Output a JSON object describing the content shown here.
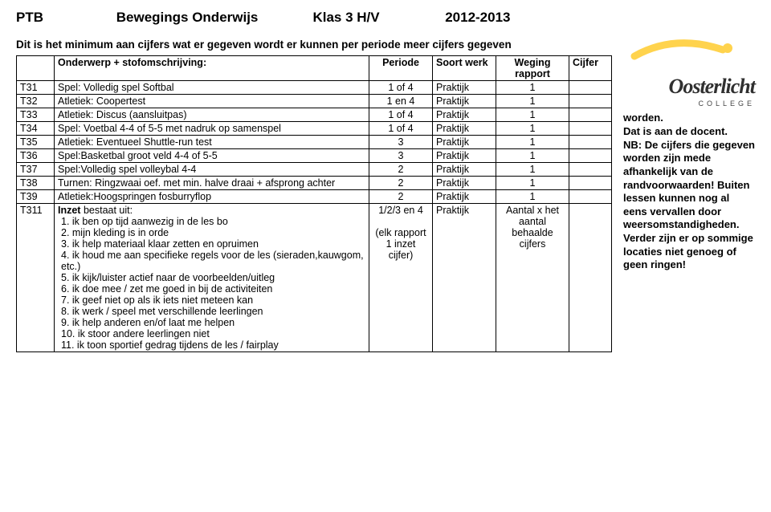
{
  "header": {
    "ptb": "PTB",
    "title": "Bewegings Onderwijs",
    "klas": "Klas 3  H/V",
    "year": "2012-2013"
  },
  "intro": "Dit is het minimum aan cijfers wat er gegeven wordt er kunnen per periode meer cijfers gegeven",
  "table": {
    "headers": {
      "code": "",
      "onderwerp": "Onderwerp + stofomschrijving:",
      "periode": "Periode",
      "soort": "Soort werk",
      "weging": "Weging rapport",
      "cijfer": "Cijfer"
    },
    "rows": [
      {
        "code": "T31",
        "onderwerp": "Spel: Volledig spel Softbal",
        "periode": "1 of 4",
        "soort": "Praktijk",
        "weging": "1",
        "cijfer": ""
      },
      {
        "code": "T32",
        "onderwerp": "Atletiek: Coopertest",
        "periode": "1 en 4",
        "soort": "Praktijk",
        "weging": "1",
        "cijfer": ""
      },
      {
        "code": "T33",
        "onderwerp": "Atletiek: Discus (aansluitpas)",
        "periode": "1 of 4",
        "soort": "Praktijk",
        "weging": "1",
        "cijfer": ""
      },
      {
        "code": "T34",
        "onderwerp": "Spel: Voetbal 4-4 of 5-5 met nadruk op samenspel",
        "periode": "1 of 4",
        "soort": "Praktijk",
        "weging": "1",
        "cijfer": ""
      },
      {
        "code": "T35",
        "onderwerp": "Atletiek: Eventueel Shuttle-run test",
        "periode": "3",
        "soort": "Praktijk",
        "weging": "1",
        "cijfer": ""
      },
      {
        "code": "T36",
        "onderwerp": "Spel:Basketbal groot veld 4-4 of 5-5",
        "periode": "3",
        "soort": "Praktijk",
        "weging": "1",
        "cijfer": ""
      },
      {
        "code": "T37",
        "onderwerp": "Spel:Volledig spel volleybal 4-4",
        "periode": "2",
        "soort": "Praktijk",
        "weging": "1",
        "cijfer": ""
      },
      {
        "code": "T38",
        "onderwerp": "Turnen: Ringzwaai oef. met min. halve draai + afsprong achter",
        "periode": "2",
        "soort": "Praktijk",
        "weging": "1",
        "cijfer": ""
      },
      {
        "code": "T39",
        "onderwerp": "Atletiek:Hoogspringen fosburryflop",
        "periode": "2",
        "soort": "Praktijk",
        "weging": "1",
        "cijfer": ""
      }
    ],
    "inzet": {
      "code": "T311",
      "title": "Inzet",
      "title_suffix": " bestaat uit:",
      "items": [
        "1. ik ben op tijd aanwezig in de les bo",
        "2. mijn kleding is in orde",
        "3. ik help materiaal klaar zetten en opruimen",
        "4. ik houd me aan specifieke regels voor de les (sieraden,kauwgom, etc.)",
        "5. ik kijk/luister actief naar de voorbeelden/uitleg",
        "6. ik doe mee / zet me goed in bij de activiteiten",
        "7. ik geef niet op als ik iets niet meteen kan",
        "8. ik werk / speel met verschillende leerlingen",
        "9. ik help anderen en/of laat me helpen",
        "10. ik stoor andere leerlingen niet",
        "11. ik toon sportief gedrag tijdens de les / fairplay"
      ],
      "periode": "1/2/3 en 4",
      "periode_note": "(elk rapport 1 inzet cijfer)",
      "soort": "Praktijk",
      "weging": "Aantal x het aantal behaalde cijfers",
      "cijfer": ""
    }
  },
  "side_note": "worden.\nDat is aan de docent.\nNB: De cijfers die gegeven worden zijn mede afhankelijk van de randvoorwaarden! Buiten lessen kunnen nog al eens vervallen door weersomstandigheden. Verder zijn er op sommige locaties niet genoeg of geen ringen!",
  "logo": {
    "name": "Oosterlicht",
    "sub": "COLLEGE"
  }
}
